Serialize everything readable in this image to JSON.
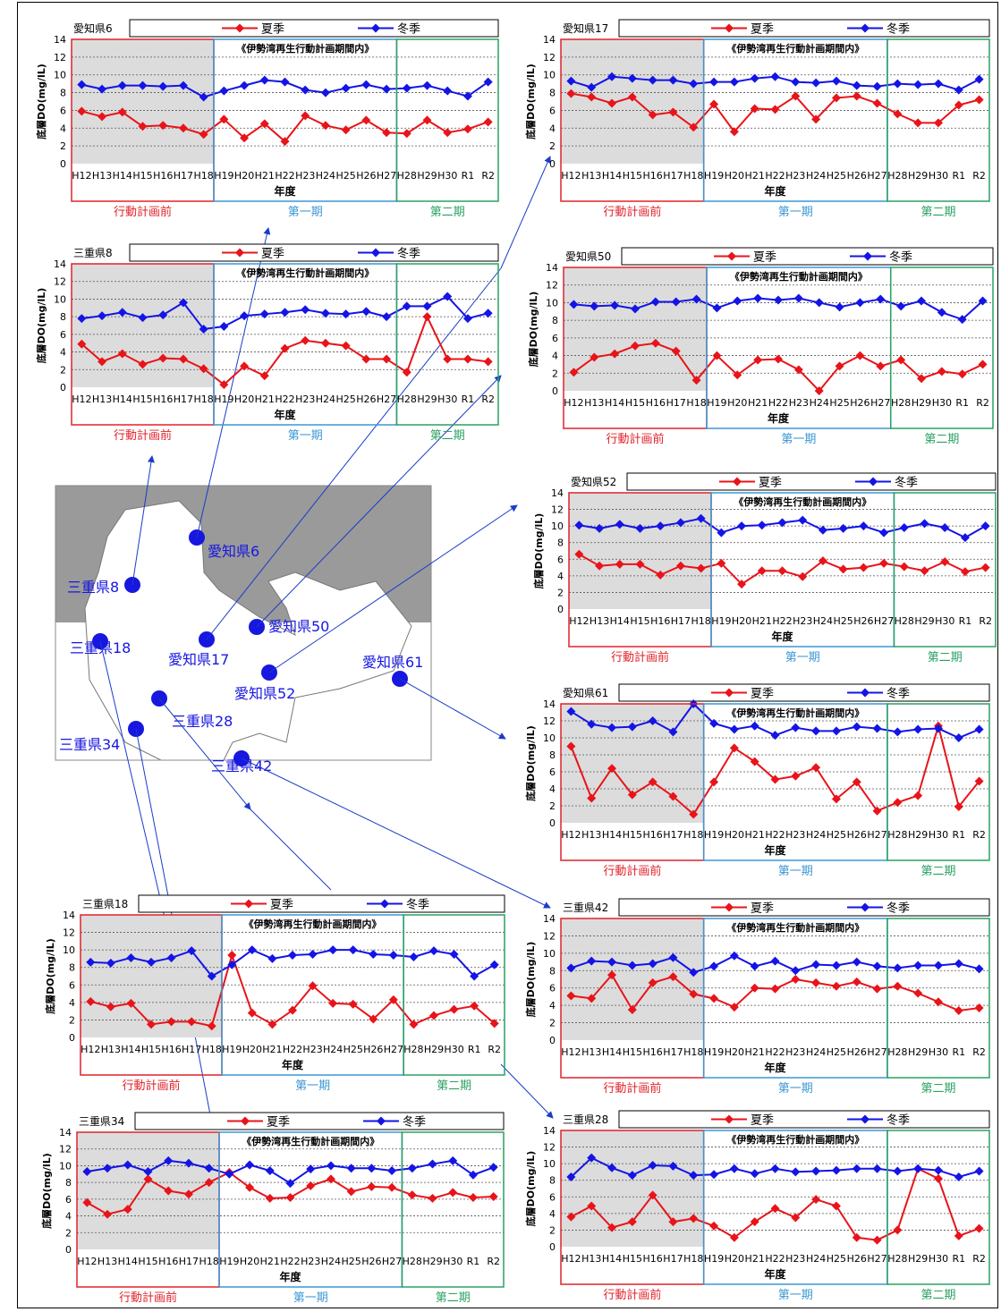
{
  "series_names": [
    "夏季",
    "冬季"
  ],
  "period_header": "《伊勢湾再生行動計画期間内》",
  "xlabel": "年度",
  "ylabel": "底層DO(mg/lL)",
  "periods": [
    "行動計画前",
    "第一期",
    "第二期"
  ],
  "colors": {
    "summer": "#e8141a",
    "winter": "#1414e6",
    "pre": "#e0222a",
    "p1": "#3b97d4",
    "p2": "#2aa163",
    "shade": "#dcdcdc"
  },
  "map_labels": [
    "愛知県6",
    "三重県8",
    "愛知県17",
    "愛知県50",
    "三重県18",
    "愛知県61",
    "愛知県52",
    "三重県28",
    "三重県34",
    "三重県42"
  ],
  "chart_data": [
    {
      "type": "line",
      "title": "愛知県6",
      "categories": [
        "H12",
        "H13",
        "H14",
        "H15",
        "H16",
        "H17",
        "H18",
        "H19",
        "H20",
        "H21",
        "H22",
        "H23",
        "H24",
        "H25",
        "H26",
        "H27",
        "H28",
        "H29",
        "H30",
        "R1",
        "R2"
      ],
      "ylim": [
        0,
        14
      ],
      "yticks": [
        0,
        2,
        4,
        6,
        8,
        10,
        12,
        14
      ],
      "series": [
        {
          "name": "夏季",
          "values": [
            5.9,
            5.3,
            5.8,
            4.2,
            4.3,
            4.0,
            3.3,
            5.0,
            2.9,
            4.5,
            2.5,
            5.4,
            4.3,
            3.8,
            4.9,
            3.5,
            3.4,
            4.9,
            3.5,
            3.9,
            4.7
          ]
        },
        {
          "name": "冬季",
          "values": [
            8.9,
            8.4,
            8.8,
            8.8,
            8.7,
            8.8,
            7.5,
            8.2,
            8.8,
            9.4,
            9.2,
            8.3,
            8.0,
            8.5,
            8.9,
            8.4,
            8.5,
            8.8,
            8.2,
            7.6,
            9.2
          ]
        }
      ]
    },
    {
      "type": "line",
      "title": "愛知県17",
      "categories": [
        "H12",
        "H13",
        "H14",
        "H15",
        "H16",
        "H17",
        "H18",
        "H19",
        "H20",
        "H21",
        "H22",
        "H23",
        "H24",
        "H25",
        "H26",
        "H27",
        "H28",
        "H29",
        "H30",
        "R1",
        "R2"
      ],
      "ylim": [
        0,
        14
      ],
      "yticks": [
        0,
        2,
        4,
        6,
        8,
        10,
        12,
        14
      ],
      "series": [
        {
          "name": "夏季",
          "values": [
            7.9,
            7.5,
            6.8,
            7.5,
            5.5,
            5.8,
            4.1,
            6.7,
            3.6,
            6.2,
            6.1,
            7.6,
            5.0,
            7.4,
            7.6,
            6.8,
            5.6,
            4.6,
            4.6,
            6.6,
            7.2
          ]
        },
        {
          "name": "冬季",
          "values": [
            9.3,
            8.6,
            9.8,
            9.6,
            9.4,
            9.4,
            9.0,
            9.2,
            9.2,
            9.6,
            9.8,
            9.2,
            9.1,
            9.3,
            8.8,
            8.7,
            9.0,
            8.9,
            9.0,
            8.3,
            9.5
          ]
        }
      ]
    },
    {
      "type": "line",
      "title": "三重県8",
      "categories": [
        "H12",
        "H13",
        "H14",
        "H15",
        "H16",
        "H17",
        "H18",
        "H19",
        "H20",
        "H21",
        "H22",
        "H23",
        "H24",
        "H25",
        "H26",
        "H27",
        "H28",
        "H29",
        "H30",
        "R1",
        "R2"
      ],
      "ylim": [
        0,
        14
      ],
      "yticks": [
        0,
        2,
        4,
        6,
        8,
        10,
        12,
        14
      ],
      "series": [
        {
          "name": "夏季",
          "values": [
            4.9,
            2.9,
            3.8,
            2.6,
            3.3,
            3.2,
            2.1,
            0.3,
            2.4,
            1.3,
            4.4,
            5.3,
            5.0,
            4.7,
            3.2,
            3.2,
            1.7,
            8.0,
            3.2,
            3.2,
            2.9
          ]
        },
        {
          "name": "冬季",
          "values": [
            7.8,
            8.1,
            8.5,
            7.9,
            8.2,
            9.6,
            6.6,
            6.9,
            8.1,
            8.3,
            8.5,
            8.8,
            8.4,
            8.3,
            8.6,
            8.0,
            9.2,
            9.2,
            10.3,
            7.8,
            8.4
          ]
        }
      ]
    },
    {
      "type": "line",
      "title": "愛知県50",
      "categories": [
        "H12",
        "H13",
        "H14",
        "H15",
        "H16",
        "H17",
        "H18",
        "H19",
        "H20",
        "H21",
        "H22",
        "H23",
        "H24",
        "H25",
        "H26",
        "H27",
        "H28",
        "H29",
        "H30",
        "R1",
        "R2"
      ],
      "ylim": [
        0,
        14
      ],
      "yticks": [
        0,
        2,
        4,
        6,
        8,
        10,
        12,
        14
      ],
      "series": [
        {
          "name": "夏季",
          "values": [
            2.1,
            3.8,
            4.2,
            5.1,
            5.4,
            4.5,
            1.2,
            4.0,
            1.8,
            3.5,
            3.6,
            2.4,
            0.0,
            2.8,
            4.0,
            2.8,
            3.5,
            1.4,
            2.2,
            1.9,
            3.0
          ]
        },
        {
          "name": "冬季",
          "values": [
            9.8,
            9.6,
            9.7,
            9.3,
            10.1,
            10.1,
            10.4,
            9.4,
            10.2,
            10.5,
            10.3,
            10.5,
            10.0,
            9.5,
            10.0,
            10.4,
            9.6,
            10.2,
            8.9,
            8.1,
            10.2
          ]
        }
      ]
    },
    {
      "type": "line",
      "title": "愛知県52",
      "categories": [
        "H12",
        "H13",
        "H14",
        "H15",
        "H16",
        "H17",
        "H18",
        "H19",
        "H20",
        "H21",
        "H22",
        "H23",
        "H24",
        "H25",
        "H26",
        "H27",
        "H28",
        "H29",
        "H30",
        "R1",
        "R2"
      ],
      "ylim": [
        0,
        14
      ],
      "yticks": [
        0,
        2,
        4,
        6,
        8,
        10,
        12,
        14
      ],
      "series": [
        {
          "name": "夏季",
          "values": [
            6.6,
            5.2,
            5.4,
            5.4,
            4.1,
            5.2,
            4.9,
            5.5,
            3.0,
            4.6,
            4.6,
            3.9,
            5.8,
            4.8,
            5.0,
            5.5,
            5.1,
            4.6,
            5.7,
            4.5,
            5.0
          ]
        },
        {
          "name": "冬季",
          "values": [
            10.1,
            9.7,
            10.2,
            9.7,
            10.0,
            10.4,
            10.9,
            9.2,
            10.0,
            10.1,
            10.4,
            10.7,
            9.5,
            9.7,
            10.0,
            9.2,
            9.8,
            10.3,
            9.8,
            8.6,
            10.0
          ]
        }
      ]
    },
    {
      "type": "line",
      "title": "愛知県61",
      "categories": [
        "H12",
        "H13",
        "H14",
        "H15",
        "H16",
        "H17",
        "H18",
        "H19",
        "H20",
        "H21",
        "H22",
        "H23",
        "H24",
        "H25",
        "H26",
        "H27",
        "H28",
        "H29",
        "H30",
        "R1",
        "R2"
      ],
      "ylim": [
        0,
        14
      ],
      "yticks": [
        0,
        2,
        4,
        6,
        8,
        10,
        12,
        14
      ],
      "series": [
        {
          "name": "夏季",
          "values": [
            9.0,
            2.9,
            6.4,
            3.3,
            4.8,
            3.1,
            1.0,
            4.8,
            8.8,
            7.2,
            5.1,
            5.5,
            6.5,
            2.8,
            4.8,
            1.4,
            2.4,
            3.2,
            11.4,
            1.9,
            4.9
          ]
        },
        {
          "name": "冬季",
          "values": [
            13.1,
            11.6,
            11.2,
            11.3,
            12.0,
            10.7,
            14.0,
            11.7,
            11.0,
            11.4,
            10.3,
            11.2,
            10.8,
            10.8,
            11.3,
            11.1,
            10.7,
            11.0,
            11.1,
            10.0,
            11.0
          ]
        }
      ]
    },
    {
      "type": "line",
      "title": "三重県18",
      "categories": [
        "H12",
        "H13",
        "H14",
        "H15",
        "H16",
        "H17",
        "H18",
        "H19",
        "H20",
        "H21",
        "H22",
        "H23",
        "H24",
        "H25",
        "H26",
        "H27",
        "H28",
        "H29",
        "H30",
        "R1",
        "R2"
      ],
      "ylim": [
        0,
        14
      ],
      "yticks": [
        0,
        2,
        4,
        6,
        8,
        10,
        12,
        14
      ],
      "series": [
        {
          "name": "夏季",
          "values": [
            4.1,
            3.5,
            3.9,
            1.5,
            1.8,
            1.8,
            1.3,
            9.4,
            2.8,
            1.5,
            3.1,
            5.9,
            3.9,
            3.8,
            2.1,
            4.3,
            1.5,
            2.5,
            3.2,
            3.6,
            1.6
          ]
        },
        {
          "name": "冬季",
          "values": [
            8.6,
            8.5,
            9.1,
            8.6,
            9.1,
            9.9,
            7.0,
            8.3,
            10.0,
            9.0,
            9.4,
            9.5,
            10.0,
            10.0,
            9.5,
            9.4,
            9.2,
            9.9,
            9.5,
            7.0,
            8.3
          ]
        }
      ]
    },
    {
      "type": "line",
      "title": "三重県42",
      "categories": [
        "H12",
        "H13",
        "H14",
        "H15",
        "H16",
        "H17",
        "H18",
        "H19",
        "H20",
        "H21",
        "H22",
        "H23",
        "H24",
        "H25",
        "H26",
        "H27",
        "H28",
        "H29",
        "H30",
        "R1",
        "R2"
      ],
      "ylim": [
        0,
        14
      ],
      "yticks": [
        0,
        2,
        4,
        6,
        8,
        10,
        12,
        14
      ],
      "series": [
        {
          "name": "夏季",
          "values": [
            5.1,
            4.8,
            7.5,
            3.5,
            6.6,
            7.3,
            5.3,
            4.8,
            3.8,
            6.0,
            5.9,
            7.0,
            6.6,
            6.2,
            6.7,
            5.9,
            6.2,
            5.4,
            4.4,
            3.4,
            3.7
          ]
        },
        {
          "name": "冬季",
          "values": [
            8.3,
            9.1,
            9.0,
            8.6,
            8.8,
            9.5,
            7.8,
            8.5,
            9.7,
            8.5,
            9.1,
            8.0,
            8.7,
            8.6,
            9.0,
            8.5,
            8.3,
            8.6,
            8.6,
            8.8,
            8.2
          ]
        }
      ]
    },
    {
      "type": "line",
      "title": "三重県34",
      "categories": [
        "H12",
        "H13",
        "H14",
        "H15",
        "H16",
        "H17",
        "H18",
        "H19",
        "H20",
        "H21",
        "H22",
        "H23",
        "H24",
        "H25",
        "H26",
        "H27",
        "H28",
        "H29",
        "H30",
        "R1",
        "R2"
      ],
      "ylim": [
        0,
        14
      ],
      "yticks": [
        0,
        2,
        4,
        6,
        8,
        10,
        12,
        14
      ],
      "series": [
        {
          "name": "夏季",
          "values": [
            5.6,
            4.2,
            4.8,
            8.4,
            7.0,
            6.6,
            8.0,
            9.2,
            7.4,
            6.1,
            6.2,
            7.6,
            8.4,
            6.9,
            7.5,
            7.4,
            6.5,
            6.1,
            6.8,
            6.2,
            6.3
          ]
        },
        {
          "name": "冬季",
          "values": [
            9.3,
            9.7,
            10.1,
            9.3,
            10.6,
            10.3,
            9.7,
            9.0,
            10.1,
            9.4,
            7.9,
            9.6,
            10.0,
            9.7,
            9.7,
            9.4,
            9.7,
            10.2,
            10.6,
            8.9,
            9.8
          ]
        }
      ]
    },
    {
      "type": "line",
      "title": "三重県28",
      "categories": [
        "H12",
        "H13",
        "H14",
        "H15",
        "H16",
        "H17",
        "H18",
        "H19",
        "H20",
        "H21",
        "H22",
        "H23",
        "H24",
        "H25",
        "H26",
        "H27",
        "H28",
        "H29",
        "H30",
        "R1",
        "R2"
      ],
      "ylim": [
        0,
        14
      ],
      "yticks": [
        0,
        2,
        4,
        6,
        8,
        10,
        12,
        14
      ],
      "series": [
        {
          "name": "夏季",
          "values": [
            3.6,
            4.9,
            2.3,
            3.0,
            6.2,
            3.0,
            3.4,
            2.5,
            1.1,
            3.0,
            4.6,
            3.5,
            5.7,
            4.9,
            1.1,
            0.8,
            2.0,
            9.4,
            8.2,
            1.3,
            2.2
          ]
        },
        {
          "name": "冬季",
          "values": [
            8.4,
            10.7,
            9.5,
            8.6,
            9.8,
            9.7,
            8.6,
            8.7,
            9.4,
            8.8,
            9.4,
            9.0,
            9.1,
            9.2,
            9.4,
            9.4,
            9.1,
            9.4,
            9.2,
            8.4,
            9.1
          ]
        }
      ]
    }
  ]
}
